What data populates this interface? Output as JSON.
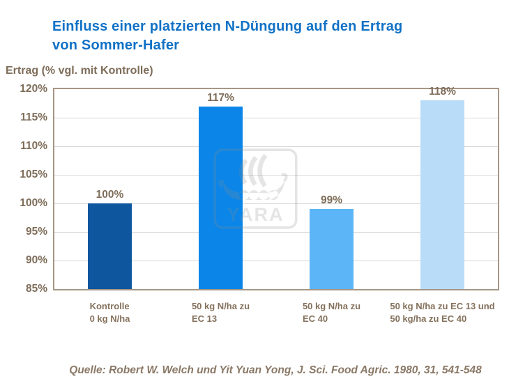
{
  "title": {
    "line1": "Einfluss einer platzierten N-Düngung auf den Ertrag",
    "line2": "von Sommer-Hafer"
  },
  "source": "Quelle: Robert W. Welch und Yit Yuan Yong, J. Sci. Food Agric. 1980, 31, 541-548",
  "watermark": {
    "name": "yara-viking-ship-logo",
    "text": "YARA"
  },
  "colors": {
    "title_blue": "#1171c5",
    "axis_text": "#7e6d59",
    "xlabel_text": "#84715c",
    "source_text": "#8a7866",
    "plot_border": "#a79685",
    "gridline": "#d9d9d9",
    "watermark_gray": "#8c8c8c"
  },
  "chart_data": {
    "type": "bar",
    "title": "Einfluss einer platzierten N-Düngung auf den Ertrag von Sommer-Hafer",
    "ylabel": "Ertrag (% vgl. mit Kontrolle)",
    "xlabel": "",
    "categories": [
      [
        "Kontrolle",
        "0 kg N/ha"
      ],
      [
        "50 kg N/ha zu",
        "EC 13"
      ],
      [
        "50 kg N/ha zu",
        "EC 40"
      ],
      [
        "50 kg N/ha zu EC 13 und",
        "50 kg/ha zu EC 40"
      ]
    ],
    "values": [
      100,
      117,
      99,
      118
    ],
    "value_labels": [
      "100%",
      "117%",
      "99%",
      "118%"
    ],
    "bar_colors": [
      "#0e579e",
      "#0b86e8",
      "#5cb5f7",
      "#b9dcf8"
    ],
    "ylim": [
      85,
      120
    ],
    "ytick_step": 5,
    "ytick_labels": [
      "120%",
      "115%",
      "110%",
      "105%",
      "100%",
      "95%",
      "90%",
      "85%"
    ],
    "grid": true,
    "legend": false
  }
}
